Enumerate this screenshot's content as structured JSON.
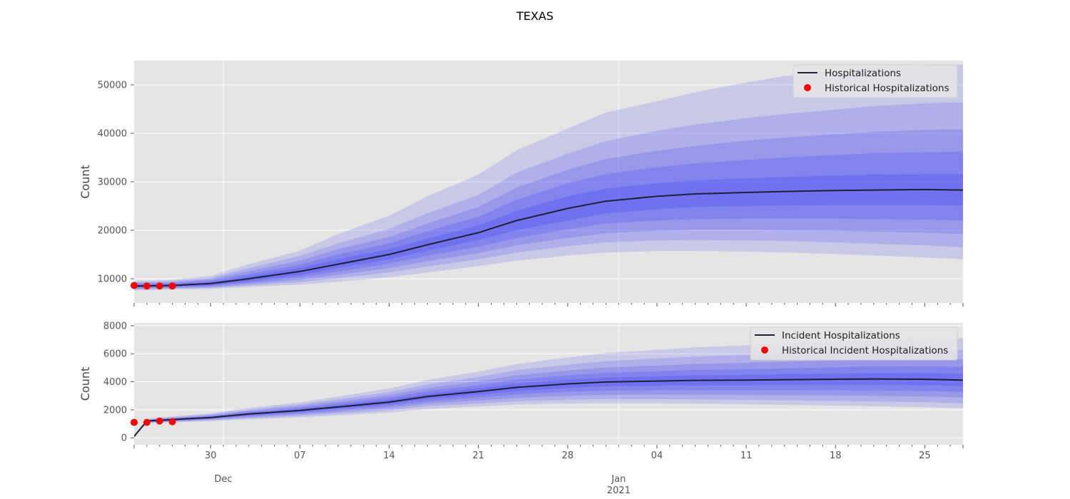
{
  "title": "TEXAS",
  "colors": {
    "background": "#e5e5e5",
    "grid": "#ffffff",
    "band": "#3b3bf5",
    "median": "#1f1f3a",
    "historical": "#ff0000"
  },
  "x_axis": {
    "start": "2020-11-24",
    "end": "2021-01-28",
    "major_ticks": [
      {
        "date": "2020-11-30",
        "label": "30"
      },
      {
        "date": "2020-12-07",
        "label": "07"
      },
      {
        "date": "2020-12-14",
        "label": "14"
      },
      {
        "date": "2020-12-21",
        "label": "21"
      },
      {
        "date": "2020-12-28",
        "label": "28"
      },
      {
        "date": "2021-01-04",
        "label": "04"
      },
      {
        "date": "2021-01-11",
        "label": "11"
      },
      {
        "date": "2021-01-18",
        "label": "18"
      },
      {
        "date": "2021-01-25",
        "label": "25"
      }
    ],
    "month_labels": [
      {
        "date": "2020-12-01",
        "label": "Dec"
      },
      {
        "date": "2021-01-01",
        "label": "Jan"
      }
    ],
    "year_label": {
      "date": "2021-01-01",
      "label": "2021"
    },
    "month_gridlines": [
      "2020-12-01",
      "2021-01-01"
    ]
  },
  "chart_data": [
    {
      "type": "line",
      "ylabel": "Count",
      "ylim": [
        5000,
        55000
      ],
      "yticks": [
        10000,
        20000,
        30000,
        40000,
        50000
      ],
      "legend": {
        "position": "top-right",
        "line_label": "Hospitalizations",
        "point_label": "Historical Hospitalizations"
      },
      "dates": [
        "2020-11-24",
        "2020-11-27",
        "2020-11-30",
        "2020-12-03",
        "2020-12-07",
        "2020-12-10",
        "2020-12-14",
        "2020-12-17",
        "2020-12-21",
        "2020-12-24",
        "2020-12-28",
        "2020-12-31",
        "2021-01-04",
        "2021-01-07",
        "2021-01-11",
        "2021-01-14",
        "2021-01-18",
        "2021-01-21",
        "2021-01-25",
        "2021-01-28"
      ],
      "median": [
        8500,
        8600,
        9000,
        10000,
        11500,
        13000,
        15000,
        17000,
        19500,
        22000,
        24500,
        26000,
        27000,
        27500,
        27800,
        28000,
        28200,
        28300,
        28400,
        28300
      ],
      "bands": [
        {
          "lower": [
            8300,
            8400,
            8700,
            9500,
            10800,
            12200,
            14000,
            15800,
            18000,
            20000,
            22000,
            23500,
            24300,
            24800,
            25000,
            25100,
            25200,
            25200,
            25200,
            25100
          ],
          "upper": [
            8700,
            8800,
            9300,
            10500,
            12200,
            14000,
            16100,
            18300,
            21000,
            24000,
            27000,
            28600,
            29700,
            30300,
            30700,
            31000,
            31300,
            31500,
            31600,
            31600
          ]
        },
        {
          "lower": [
            8100,
            8250,
            8500,
            9200,
            10300,
            11500,
            13100,
            14700,
            16600,
            18400,
            20200,
            21400,
            22000,
            22300,
            22400,
            22400,
            22400,
            22300,
            22200,
            22000
          ],
          "upper": [
            8900,
            9000,
            9600,
            11000,
            12900,
            15000,
            17300,
            19800,
            22800,
            26300,
            29700,
            31600,
            33000,
            33800,
            34500,
            35000,
            35500,
            35900,
            36100,
            36200
          ]
        },
        {
          "lower": [
            7950,
            8100,
            8300,
            8900,
            9800,
            10800,
            12200,
            13600,
            15300,
            16900,
            18400,
            19400,
            19900,
            20100,
            20100,
            20000,
            19900,
            19700,
            19500,
            19200
          ],
          "upper": [
            9100,
            9250,
            9900,
            11600,
            13700,
            16100,
            18600,
            21400,
            24800,
            28800,
            32500,
            34700,
            36400,
            37400,
            38500,
            39100,
            39800,
            40300,
            40700,
            40800
          ]
        },
        {
          "lower": [
            7800,
            7950,
            8100,
            8600,
            9300,
            10100,
            11300,
            12500,
            14000,
            15400,
            16700,
            17500,
            17900,
            18000,
            17900,
            17800,
            17500,
            17200,
            16900,
            16500
          ],
          "upper": [
            9300,
            9500,
            10200,
            12200,
            14700,
            17300,
            20300,
            23500,
            27300,
            31900,
            35800,
            38400,
            40500,
            41800,
            43100,
            44000,
            44900,
            45600,
            46200,
            46400
          ]
        },
        {
          "lower": [
            7600,
            7800,
            7900,
            8300,
            8800,
            9400,
            10300,
            11300,
            12600,
            13700,
            14800,
            15400,
            15700,
            15700,
            15600,
            15400,
            15100,
            14800,
            14400,
            14000
          ],
          "upper": [
            9500,
            9800,
            10600,
            13000,
            15800,
            19200,
            23000,
            27000,
            31500,
            36500,
            41000,
            44300,
            46600,
            48500,
            50500,
            51800,
            52800,
            53500,
            54000,
            54200
          ]
        }
      ],
      "historical": {
        "dates": [
          "2020-11-24",
          "2020-11-25",
          "2020-11-26",
          "2020-11-27"
        ],
        "values": [
          8600,
          8500,
          8500,
          8500
        ]
      }
    },
    {
      "type": "line",
      "ylabel": "Count",
      "ylim": [
        -500,
        8200
      ],
      "yticks": [
        0,
        2000,
        4000,
        6000,
        8000
      ],
      "legend": {
        "position": "top-right",
        "line_label": "Incident Hospitalizations",
        "point_label": "Historical Incident Hospitalizations"
      },
      "dates": [
        "2020-11-24",
        "2020-11-25",
        "2020-11-27",
        "2020-11-30",
        "2020-12-03",
        "2020-12-07",
        "2020-12-10",
        "2020-12-14",
        "2020-12-17",
        "2020-12-21",
        "2020-12-24",
        "2020-12-28",
        "2020-12-31",
        "2021-01-04",
        "2021-01-07",
        "2021-01-11",
        "2021-01-14",
        "2021-01-18",
        "2021-01-21",
        "2021-01-25",
        "2021-01-28"
      ],
      "median": [
        100,
        1200,
        1300,
        1450,
        1700,
        1950,
        2200,
        2550,
        2950,
        3300,
        3600,
        3850,
        3980,
        4050,
        4100,
        4120,
        4150,
        4180,
        4200,
        4180,
        4120
      ],
      "bands": [
        {
          "lower": [
            100,
            1170,
            1260,
            1400,
            1620,
            1850,
            2080,
            2400,
            2770,
            3080,
            3340,
            3560,
            3670,
            3720,
            3750,
            3760,
            3770,
            3780,
            3780,
            3750,
            3690
          ],
          "upper": [
            100,
            1230,
            1340,
            1500,
            1780,
            2050,
            2330,
            2710,
            3140,
            3530,
            3870,
            4150,
            4300,
            4390,
            4450,
            4490,
            4540,
            4590,
            4630,
            4620,
            4570
          ]
        },
        {
          "lower": [
            100,
            1140,
            1220,
            1350,
            1550,
            1760,
            1970,
            2260,
            2600,
            2870,
            3090,
            3280,
            3360,
            3390,
            3400,
            3400,
            3400,
            3390,
            3380,
            3340,
            3270
          ],
          "upper": [
            100,
            1260,
            1380,
            1550,
            1850,
            2150,
            2450,
            2870,
            3330,
            3760,
            4150,
            4460,
            4640,
            4750,
            4840,
            4900,
            4960,
            5030,
            5090,
            5100,
            5060
          ]
        },
        {
          "lower": [
            100,
            1110,
            1180,
            1300,
            1480,
            1670,
            1860,
            2120,
            2430,
            2670,
            2850,
            3000,
            3060,
            3080,
            3070,
            3060,
            3040,
            3020,
            3000,
            2950,
            2880
          ],
          "upper": [
            100,
            1290,
            1420,
            1610,
            1930,
            2260,
            2590,
            3050,
            3550,
            4030,
            4460,
            4800,
            5020,
            5160,
            5270,
            5350,
            5430,
            5520,
            5590,
            5630,
            5610
          ]
        },
        {
          "lower": [
            100,
            1080,
            1140,
            1250,
            1400,
            1570,
            1740,
            1970,
            2250,
            2450,
            2610,
            2720,
            2760,
            2760,
            2740,
            2710,
            2680,
            2640,
            2600,
            2540,
            2460
          ],
          "upper": [
            100,
            1320,
            1470,
            1680,
            2020,
            2380,
            2750,
            3260,
            3810,
            4350,
            4830,
            5220,
            5480,
            5660,
            5800,
            5910,
            6010,
            6120,
            6200,
            6260,
            6260
          ]
        },
        {
          "lower": [
            100,
            1050,
            1100,
            1190,
            1320,
            1460,
            1600,
            1810,
            2060,
            2230,
            2370,
            2450,
            2470,
            2460,
            2430,
            2390,
            2350,
            2300,
            2250,
            2180,
            2100
          ],
          "upper": [
            100,
            1350,
            1520,
            1760,
            2140,
            2530,
            2950,
            3520,
            4130,
            4730,
            5270,
            5730,
            6050,
            6280,
            6460,
            6610,
            6740,
            6880,
            6990,
            7080,
            7100
          ]
        }
      ],
      "historical": {
        "dates": [
          "2020-11-24",
          "2020-11-25",
          "2020-11-26",
          "2020-11-27"
        ],
        "values": [
          1100,
          1100,
          1200,
          1150
        ]
      }
    }
  ]
}
